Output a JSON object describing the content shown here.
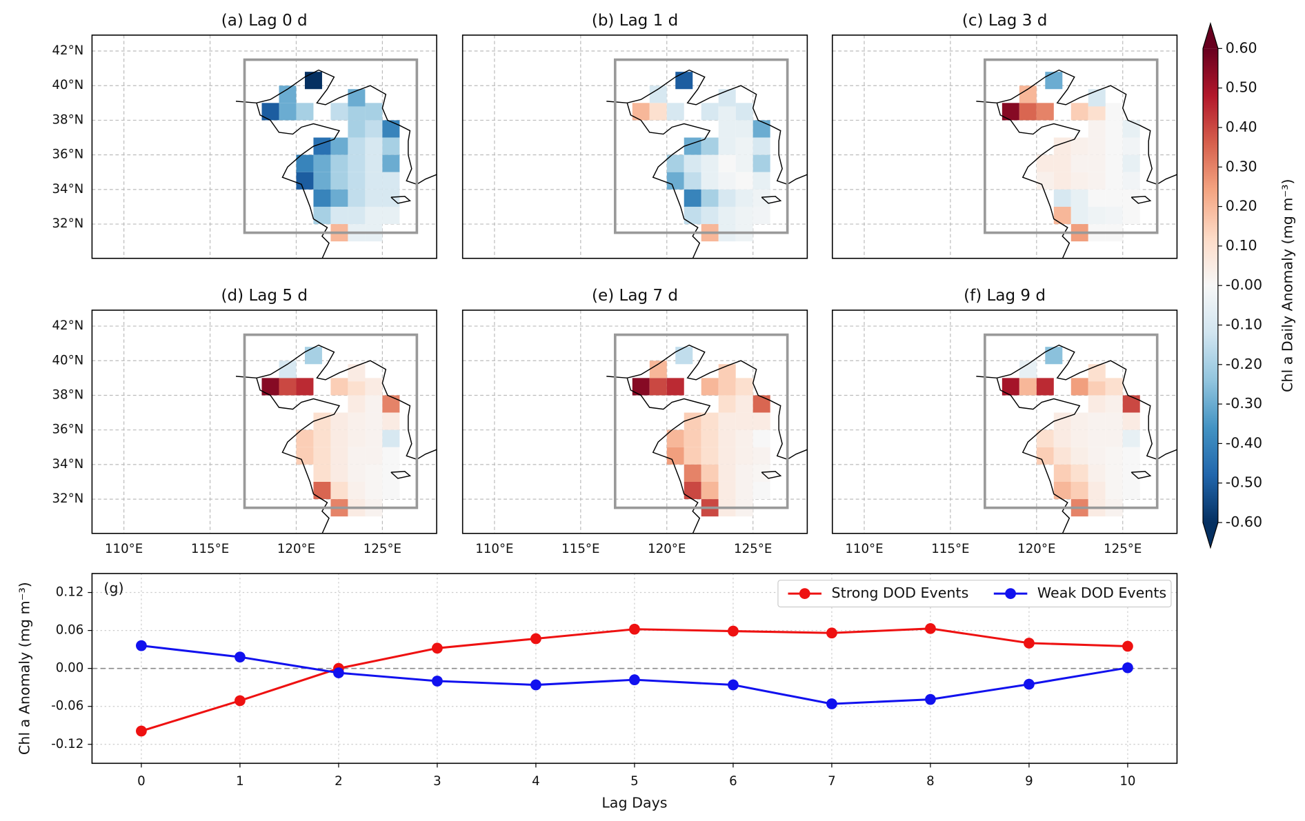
{
  "chart_data": [
    {
      "type": "map",
      "panels": [
        {
          "title": "(a) Lag 0 d",
          "values": [
            -0.5,
            -0.3,
            -0.2,
            -0.3,
            -0.6,
            -0.15,
            -0.2,
            -0.2,
            -0.3,
            -0.2,
            -0.15,
            -0.4,
            -0.45,
            -0.3,
            -0.15,
            -0.1,
            -0.2,
            -0.4,
            -0.3,
            -0.2,
            -0.15,
            -0.1,
            -0.3,
            -0.5,
            -0.3,
            -0.2,
            -0.15,
            -0.1,
            -0.1,
            -0.4,
            -0.3,
            -0.15,
            -0.1,
            -0.1,
            -0.2,
            -0.1,
            -0.1,
            -0.05,
            -0.05,
            0.2,
            -0.05,
            -0.05
          ]
        },
        {
          "title": "(b) Lag 1 d",
          "values": [
            0.2,
            0.1,
            -0.1,
            -0.1,
            -0.5,
            -0.1,
            -0.05,
            -0.1,
            -0.1,
            -0.05,
            -0.05,
            -0.3,
            -0.3,
            -0.2,
            -0.05,
            -0.03,
            -0.1,
            -0.2,
            -0.1,
            -0.05,
            0.0,
            -0.03,
            -0.2,
            -0.3,
            -0.15,
            -0.05,
            -0.02,
            0.0,
            -0.05,
            -0.4,
            -0.2,
            -0.1,
            -0.05,
            -0.03,
            -0.15,
            -0.1,
            -0.05,
            -0.03,
            -0.02,
            0.2,
            -0.05,
            -0.03
          ]
        },
        {
          "title": "(c) Lag 3 d",
          "values": [
            0.55,
            0.35,
            0.3,
            0.2,
            -0.3,
            0.15,
            0.1,
            0.0,
            -0.1,
            0.02,
            0.0,
            -0.05,
            0.05,
            0.03,
            0.02,
            0.0,
            -0.02,
            0.05,
            0.05,
            0.02,
            0.02,
            0.0,
            -0.05,
            0.03,
            0.05,
            0.03,
            0.02,
            0.0,
            -0.02,
            -0.1,
            -0.05,
            0.0,
            0.0,
            0.0,
            0.2,
            -0.05,
            -0.03,
            -0.02,
            0.0,
            0.25,
            0.0,
            0.0
          ]
        },
        {
          "title": "(d) Lag 5 d",
          "values": [
            0.55,
            0.4,
            0.45,
            -0.1,
            -0.2,
            0.15,
            0.1,
            0.05,
            0.05,
            0.05,
            0.02,
            0.3,
            0.1,
            0.05,
            0.03,
            0.02,
            0.05,
            0.15,
            0.1,
            0.05,
            0.03,
            0.02,
            -0.1,
            0.15,
            0.1,
            0.05,
            0.02,
            0.02,
            0.0,
            0.1,
            0.05,
            0.02,
            0.01,
            0.0,
            0.35,
            0.1,
            0.03,
            0.01,
            0.0,
            0.3,
            0.05,
            0.02
          ]
        },
        {
          "title": "(e) Lag 7 d",
          "values": [
            0.55,
            0.4,
            0.45,
            0.2,
            -0.15,
            0.2,
            0.15,
            0.1,
            0.15,
            0.1,
            0.05,
            0.35,
            0.15,
            0.1,
            0.05,
            0.05,
            0.05,
            0.2,
            0.15,
            0.1,
            0.05,
            0.03,
            0.0,
            0.25,
            0.15,
            0.1,
            0.05,
            0.03,
            0.02,
            0.3,
            0.15,
            0.05,
            0.02,
            0.01,
            0.4,
            0.2,
            0.05,
            0.02,
            0.0,
            0.4,
            0.05,
            0.02
          ]
        },
        {
          "title": "(f) Lag 9 d",
          "values": [
            0.5,
            0.2,
            0.45,
            -0.05,
            -0.25,
            0.25,
            0.15,
            0.1,
            0.1,
            0.05,
            0.03,
            0.4,
            0.05,
            0.03,
            0.02,
            0.02,
            0.05,
            0.1,
            0.05,
            0.03,
            0.02,
            0.02,
            -0.05,
            0.15,
            0.08,
            0.04,
            0.02,
            0.01,
            0.0,
            0.15,
            0.1,
            0.03,
            0.01,
            0.0,
            0.2,
            0.15,
            0.05,
            0.01,
            0.0,
            0.3,
            0.05,
            0.02
          ]
        }
      ],
      "cell_centers": [
        [
          118.5,
          38.5
        ],
        [
          119.5,
          38.5
        ],
        [
          120.5,
          38.5
        ],
        [
          119.5,
          39.5
        ],
        [
          121.0,
          40.3
        ],
        [
          122.5,
          38.5
        ],
        [
          123.5,
          38.5
        ],
        [
          124.5,
          38.5
        ],
        [
          123.5,
          39.3
        ],
        [
          123.5,
          37.5
        ],
        [
          124.5,
          37.5
        ],
        [
          125.5,
          37.5
        ],
        [
          121.5,
          36.5
        ],
        [
          122.5,
          36.5
        ],
        [
          123.5,
          36.5
        ],
        [
          124.5,
          36.5
        ],
        [
          125.5,
          36.5
        ],
        [
          120.5,
          35.5
        ],
        [
          121.5,
          35.5
        ],
        [
          122.5,
          35.5
        ],
        [
          123.5,
          35.5
        ],
        [
          124.5,
          35.5
        ],
        [
          125.5,
          35.5
        ],
        [
          120.5,
          34.5
        ],
        [
          121.5,
          34.5
        ],
        [
          122.5,
          34.5
        ],
        [
          123.5,
          34.5
        ],
        [
          124.5,
          34.5
        ],
        [
          125.5,
          34.5
        ],
        [
          121.5,
          33.5
        ],
        [
          122.5,
          33.5
        ],
        [
          123.5,
          33.5
        ],
        [
          124.5,
          33.5
        ],
        [
          125.5,
          33.5
        ],
        [
          121.5,
          32.5
        ],
        [
          122.5,
          32.5
        ],
        [
          123.5,
          32.5
        ],
        [
          124.5,
          32.5
        ],
        [
          125.5,
          32.5
        ],
        [
          122.5,
          31.5
        ],
        [
          123.5,
          31.5
        ],
        [
          124.5,
          31.5
        ]
      ],
      "cell_size": 1,
      "xlim": [
        108.15,
        128.15
      ],
      "ylim": [
        30.02,
        42.92
      ],
      "xticks": [
        {
          "value": 110,
          "label": "110°E"
        },
        {
          "value": 115,
          "label": "115°E"
        },
        {
          "value": 120,
          "label": "120°E"
        },
        {
          "value": 125,
          "label": "125°E"
        }
      ],
      "yticks": [
        {
          "value": 32,
          "label": "32°N"
        },
        {
          "value": 34,
          "label": "34°N"
        },
        {
          "value": 36,
          "label": "36°N"
        },
        {
          "value": 38,
          "label": "38°N"
        },
        {
          "value": 40,
          "label": "40°N"
        },
        {
          "value": 42,
          "label": "42°N"
        }
      ],
      "grid": true,
      "region_box": {
        "lon": [
          117,
          127
        ],
        "lat": [
          31.5,
          41.5
        ],
        "color": "#999999"
      },
      "colorbar": {
        "label": "Chl a Daily Anomaly (mg m⁻³)",
        "lim": [
          -0.6,
          0.6
        ],
        "colors": [
          "#053061",
          "#2166ac",
          "#4393c3",
          "#92c5de",
          "#d1e5f0",
          "#f7f7f7",
          "#fddbc7",
          "#f4a582",
          "#d6604d",
          "#b2182b",
          "#67001f"
        ],
        "ticks": [
          {
            "value": 0.6,
            "label": "0.60"
          },
          {
            "value": 0.5,
            "label": "0.50"
          },
          {
            "value": 0.4,
            "label": "0.40"
          },
          {
            "value": 0.3,
            "label": "0.30"
          },
          {
            "value": 0.2,
            "label": "0.20"
          },
          {
            "value": 0.1,
            "label": "0.10"
          },
          {
            "value": 0,
            "label": "-0.00"
          },
          {
            "value": -0.1,
            "label": "-0.10"
          },
          {
            "value": -0.2,
            "label": "-0.20"
          },
          {
            "value": -0.3,
            "label": "-0.30"
          },
          {
            "value": -0.4,
            "label": "-0.40"
          },
          {
            "value": -0.5,
            "label": "-0.50"
          },
          {
            "value": -0.6,
            "label": "-0.60"
          }
        ]
      }
    },
    {
      "type": "line",
      "panel_label": "(g)",
      "x": [
        0,
        1,
        2,
        3,
        4,
        5,
        6,
        7,
        8,
        9,
        10
      ],
      "series": [
        {
          "name": "Strong DOD Events",
          "color": "#ee1111",
          "values": [
            -0.099,
            -0.051,
            0.0,
            0.032,
            0.047,
            0.062,
            0.059,
            0.056,
            0.063,
            0.04,
            0.035
          ]
        },
        {
          "name": "Weak DOD Events",
          "color": "#1111ee",
          "values": [
            0.036,
            0.018,
            -0.007,
            -0.02,
            -0.026,
            -0.018,
            -0.026,
            -0.056,
            -0.049,
            -0.025,
            0.001
          ]
        }
      ],
      "xlabel": "Lag Days",
      "ylabel": "Chl a Anomaly (mg m⁻³)",
      "xlim": [
        -0.5,
        10.5
      ],
      "ylim": [
        -0.15,
        0.15
      ],
      "xticks": [
        0,
        1,
        2,
        3,
        4,
        5,
        6,
        7,
        8,
        9,
        10
      ],
      "yticks": [
        -0.12,
        -0.06,
        {
          "value": 0,
          "label": "0.00"
        },
        0.06,
        0.12
      ],
      "hline": 0,
      "grid": true,
      "legend": "upper right"
    }
  ]
}
